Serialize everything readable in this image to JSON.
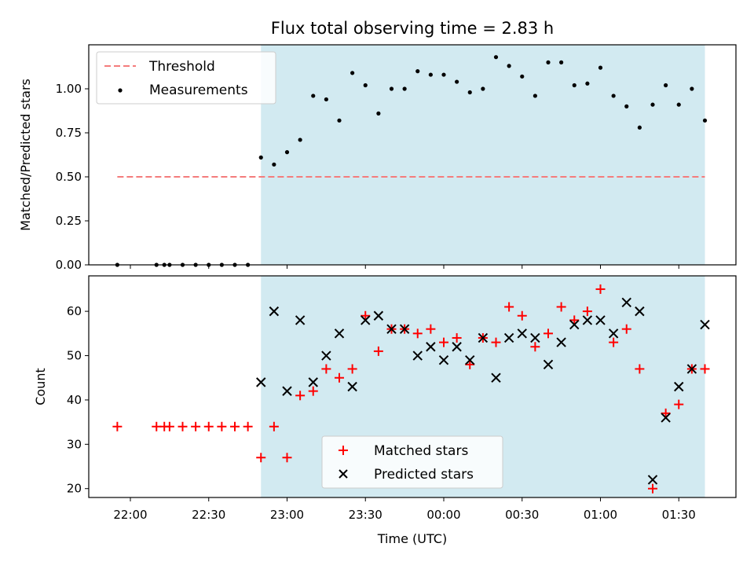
{
  "chart_data": [
    {
      "type": "scatter",
      "title": "Flux total observing time = 2.83 h",
      "xlabel": "",
      "ylabel": "Matched/Predicted stars",
      "ylim": [
        0,
        1.25
      ],
      "yticks": [
        "0.00",
        "0.25",
        "0.50",
        "0.75",
        "1.00"
      ],
      "grid": false,
      "legend_position": "upper-left",
      "colors": {
        "threshold": "#f47c7c",
        "measurements": "#000000",
        "shade": "#add8e6"
      },
      "threshold": {
        "name": "Threshold",
        "value": 0.5,
        "x_start": "21:55",
        "x_end": "01:40"
      },
      "shaded_range": [
        "22:50",
        "01:40"
      ],
      "series": [
        {
          "name": "Measurements",
          "x": [
            "21:55",
            "22:10",
            "22:13",
            "22:15",
            "22:20",
            "22:25",
            "22:30",
            "22:35",
            "22:40",
            "22:45",
            "22:50",
            "22:55",
            "23:00",
            "23:05",
            "23:10",
            "23:15",
            "23:20",
            "23:25",
            "23:30",
            "23:35",
            "23:40",
            "23:45",
            "23:50",
            "23:55",
            "00:00",
            "00:05",
            "00:10",
            "00:15",
            "00:20",
            "00:25",
            "00:30",
            "00:35",
            "00:40",
            "00:45",
            "00:50",
            "00:55",
            "01:00",
            "01:05",
            "01:10",
            "01:15",
            "01:20",
            "01:25",
            "01:30",
            "01:35",
            "01:40"
          ],
          "y": [
            0,
            0,
            0,
            0,
            0,
            0,
            0,
            0,
            0,
            0,
            0.61,
            0.57,
            0.64,
            0.71,
            0.96,
            0.94,
            0.82,
            1.09,
            1.02,
            0.86,
            1.0,
            1.0,
            1.1,
            1.08,
            1.08,
            1.04,
            0.98,
            1.0,
            1.18,
            1.13,
            1.07,
            0.96,
            1.15,
            1.15,
            1.02,
            1.03,
            1.12,
            0.96,
            0.9,
            0.78,
            0.91,
            1.02,
            0.91,
            1.0,
            0.82
          ]
        }
      ]
    },
    {
      "type": "scatter",
      "title": "",
      "xlabel": "Time (UTC)",
      "ylabel": "Count",
      "ylim": [
        18,
        68
      ],
      "yticks": [
        "20",
        "30",
        "40",
        "50",
        "60"
      ],
      "xticks": [
        "22:00",
        "22:30",
        "23:00",
        "23:30",
        "00:00",
        "00:30",
        "01:00",
        "01:30"
      ],
      "grid": false,
      "legend_position": "lower-center",
      "colors": {
        "matched": "#ff0000",
        "predicted": "#000000",
        "shade": "#add8e6"
      },
      "shaded_range": [
        "22:50",
        "01:40"
      ],
      "series": [
        {
          "name": "Matched stars",
          "marker": "+",
          "x": [
            "21:55",
            "22:10",
            "22:13",
            "22:15",
            "22:20",
            "22:25",
            "22:30",
            "22:35",
            "22:40",
            "22:45",
            "22:50",
            "22:55",
            "23:00",
            "23:05",
            "23:10",
            "23:15",
            "23:20",
            "23:25",
            "23:30",
            "23:35",
            "23:40",
            "23:45",
            "23:50",
            "23:55",
            "00:00",
            "00:05",
            "00:10",
            "00:15",
            "00:20",
            "00:25",
            "00:30",
            "00:35",
            "00:40",
            "00:45",
            "00:50",
            "00:55",
            "01:00",
            "01:05",
            "01:10",
            "01:15",
            "01:20",
            "01:25",
            "01:30",
            "01:35",
            "01:40"
          ],
          "y": [
            34,
            34,
            34,
            34,
            34,
            34,
            34,
            34,
            34,
            34,
            27,
            34,
            27,
            41,
            42,
            47,
            45,
            47,
            59,
            51,
            56,
            56,
            55,
            56,
            53,
            54,
            48,
            54,
            53,
            61,
            59,
            52,
            55,
            61,
            58,
            60,
            65,
            53,
            56,
            47,
            20,
            37,
            39,
            47,
            47
          ]
        },
        {
          "name": "Predicted stars",
          "marker": "x",
          "x": [
            "22:50",
            "22:55",
            "23:00",
            "23:05",
            "23:10",
            "23:15",
            "23:20",
            "23:25",
            "23:30",
            "23:35",
            "23:40",
            "23:45",
            "23:50",
            "23:55",
            "00:00",
            "00:05",
            "00:10",
            "00:15",
            "00:20",
            "00:25",
            "00:30",
            "00:35",
            "00:40",
            "00:45",
            "00:50",
            "00:55",
            "01:00",
            "01:05",
            "01:10",
            "01:15",
            "01:20",
            "01:25",
            "01:30",
            "01:35",
            "01:40"
          ],
          "y": [
            44,
            60,
            42,
            58,
            44,
            50,
            55,
            43,
            58,
            59,
            56,
            56,
            50,
            52,
            49,
            52,
            49,
            54,
            45,
            54,
            55,
            54,
            48,
            53,
            57,
            58,
            58,
            55,
            62,
            60,
            22,
            36,
            43,
            47,
            57
          ]
        }
      ]
    }
  ]
}
